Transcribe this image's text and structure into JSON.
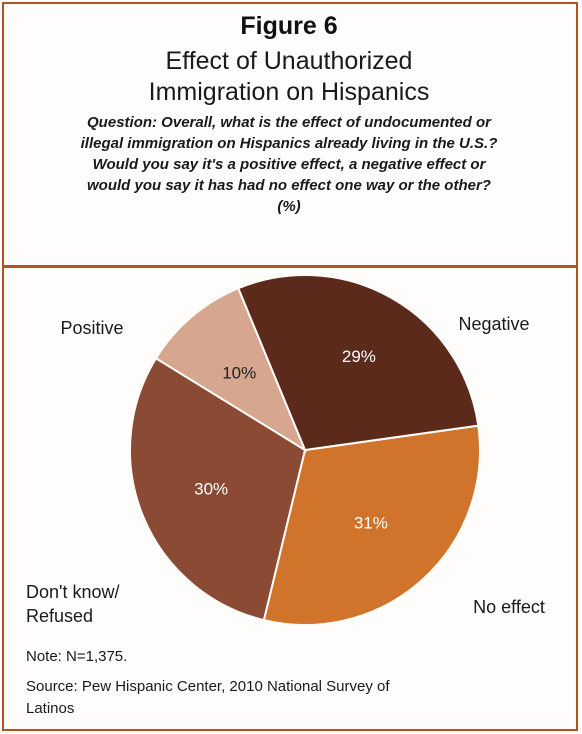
{
  "figure": {
    "label": "Figure 6",
    "title_line1": "Effect of Unauthorized",
    "title_line2": "Immigration on Hispanics",
    "question_line1": "Question: Overall, what is the effect of undocumented or",
    "question_line2": "illegal immigration on Hispanics already living in the U.S.?",
    "question_line3": "Would you say it's a positive effect, a negative effect or",
    "question_line4": "would you say it has had no effect one way or the other?",
    "question_line5": "(%)"
  },
  "chart_data": {
    "type": "pie",
    "unit": "%",
    "slices": [
      {
        "label": "Negative",
        "value": 31,
        "value_label": "31%",
        "color": "#d0732b",
        "label_color": "#ffffff"
      },
      {
        "label": "No effect",
        "value": 30,
        "value_label": "30%",
        "color": "#8a4a33",
        "label_color": "#ffffff"
      },
      {
        "label_lines": [
          "Don't know/",
          "Refused"
        ],
        "value": 10,
        "value_label": "10%",
        "color": "#d6a68e",
        "label_color": "#222222"
      },
      {
        "label": "Positive",
        "value": 29,
        "value_label": "29%",
        "color": "#5b2a1b",
        "label_color": "#ffffff"
      }
    ]
  },
  "notes": {
    "note": "Note: N=1,375.",
    "source_line1": "Source:  Pew Hispanic Center, 2010 National Survey of",
    "source_line2": "Latinos"
  }
}
